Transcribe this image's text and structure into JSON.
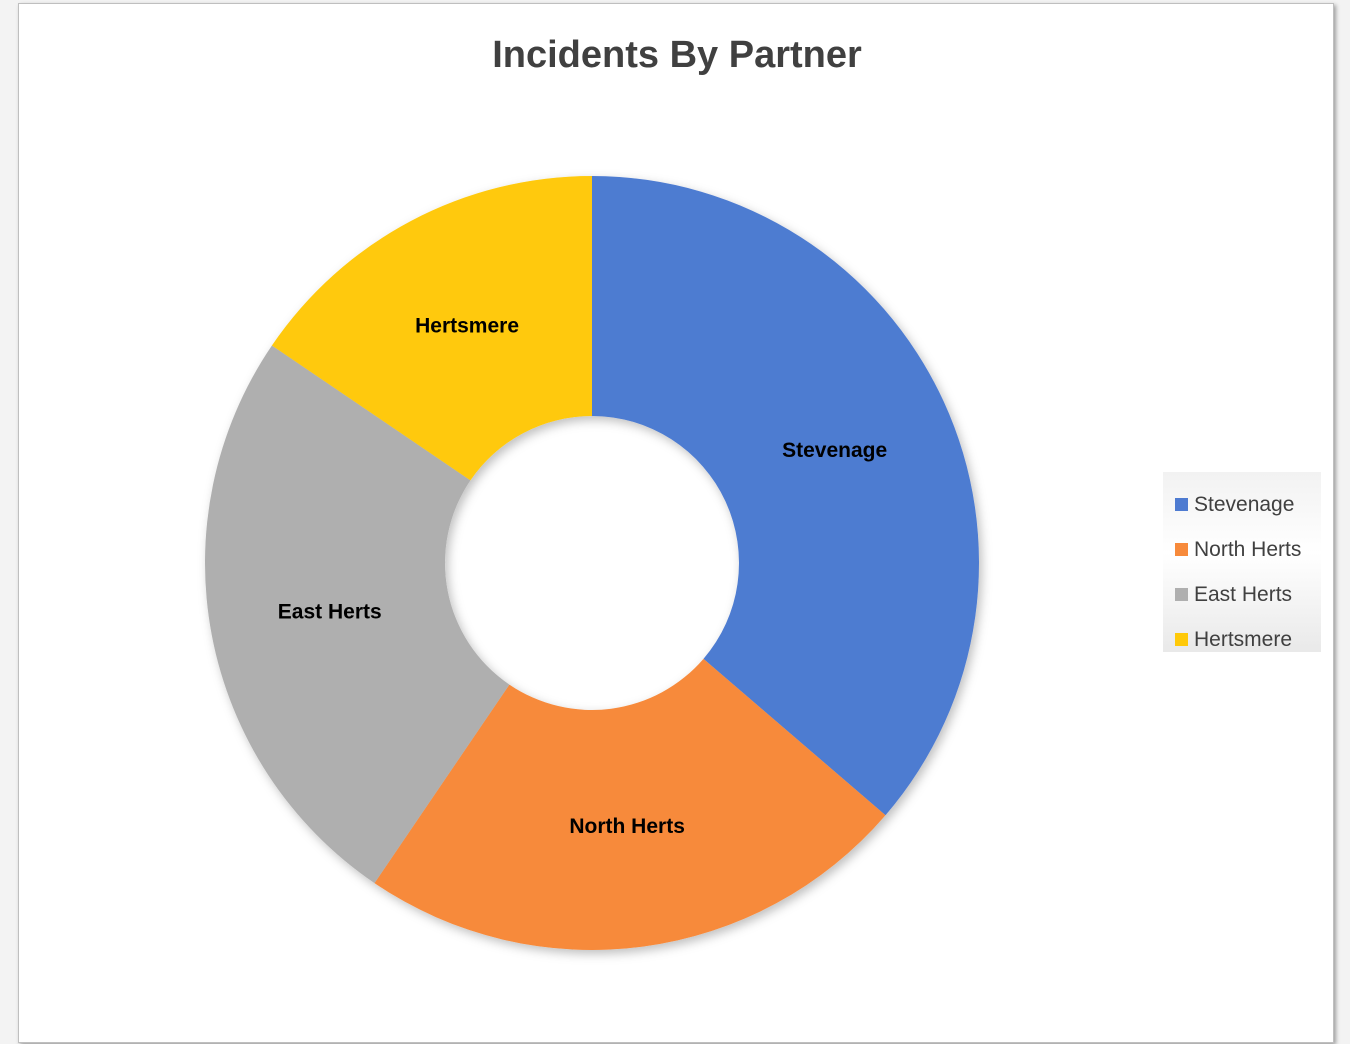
{
  "chart_data": {
    "type": "pie",
    "variant": "doughnut",
    "title": "Incidents By Partner",
    "categories": [
      "Stevenage",
      "North Herts",
      "East Herts",
      "Hertsmere"
    ],
    "values": [
      36.3,
      23.2,
      25.0,
      15.5
    ],
    "value_unit": "percent (estimated share)",
    "colors": [
      "#4e7bd1",
      "#f78a3b",
      "#afafaf",
      "#ffc908"
    ],
    "data_labels": [
      "Stevenage",
      "North Herts",
      "East Herts",
      "Hertsmere"
    ],
    "legend": {
      "position": "right",
      "entries": [
        "Stevenage",
        "North Herts",
        "East Herts",
        "Hertsmere"
      ]
    }
  }
}
